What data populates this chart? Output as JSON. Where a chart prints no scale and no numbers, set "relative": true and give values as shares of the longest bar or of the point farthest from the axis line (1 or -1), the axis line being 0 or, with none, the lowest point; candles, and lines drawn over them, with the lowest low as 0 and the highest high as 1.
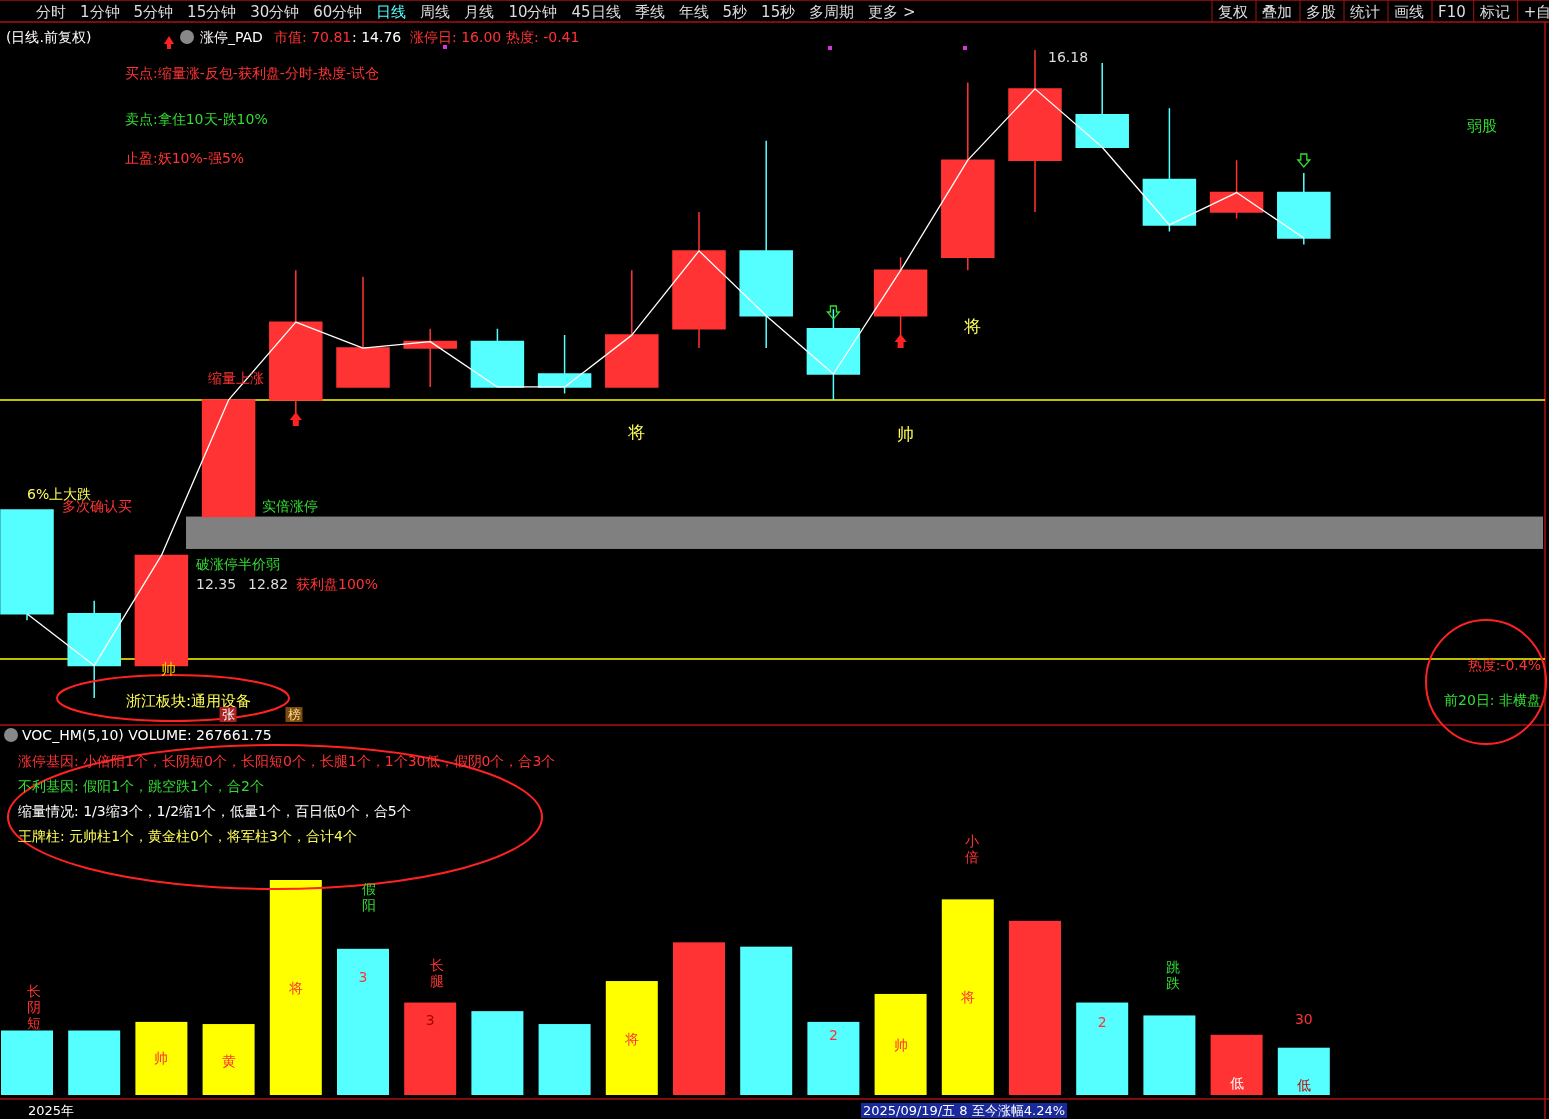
{
  "chart_data": [
    {
      "type": "other",
      "annotations": [
        "分时",
        "1分钟",
        "5分钟",
        "15分钟",
        "30分钟",
        "60分钟",
        "日线",
        "周线",
        "月线",
        "10分钟",
        "45日线",
        "季线",
        "年线",
        "5秒",
        "15秒",
        "多周期",
        "更多 >",
        "复权",
        "叠加",
        "多股",
        "统计",
        "画线",
        "F10",
        "标记",
        "+自"
      ]
    },
    {
      "type": "candlestick",
      "title": "(日线.前复权)",
      "relative": true,
      "categories": [
        null,
        null,
        null,
        null,
        null,
        null,
        null,
        null,
        null,
        null,
        null,
        null,
        null,
        null,
        null,
        null,
        null,
        null,
        null,
        null
      ],
      "ohlc": [
        [
          0.29,
          0.29,
          0.12,
          0.13
        ],
        [
          0.13,
          0.15,
          0,
          0.05
        ],
        [
          0.05,
          0.22,
          0.05,
          0.22
        ],
        [
          0.28,
          0.46,
          0.28,
          0.46
        ],
        [
          0.46,
          0.66,
          0.44,
          0.58
        ],
        [
          0.48,
          0.65,
          0.48,
          0.54
        ],
        [
          0.54,
          0.57,
          0.48,
          0.55
        ],
        [
          0.55,
          0.57,
          0.48,
          0.48
        ],
        [
          0.5,
          0.56,
          0.47,
          0.48
        ],
        [
          0.48,
          0.66,
          0.48,
          0.56
        ],
        [
          0.57,
          0.75,
          0.54,
          0.69
        ],
        [
          0.69,
          0.86,
          0.54,
          0.59
        ],
        [
          0.57,
          0.6,
          0.46,
          0.5
        ],
        [
          0.59,
          0.68,
          0.56,
          0.66
        ],
        [
          0.68,
          0.95,
          0.66,
          0.83
        ],
        [
          0.83,
          1,
          0.75,
          0.94
        ],
        [
          0.9,
          0.98,
          0.85,
          0.85
        ],
        [
          0.8,
          0.91,
          0.72,
          0.73
        ],
        [
          0.75,
          0.83,
          0.74,
          0.78
        ],
        [
          0.78,
          0.81,
          0.7,
          0.71
        ]
      ],
      "colors": [
        "#55ffff",
        "#55ffff",
        "#ff3333",
        "#ff3333",
        "#ff3333",
        "#ff3333",
        "#ff3333",
        "#55ffff",
        "#55ffff",
        "#ff3333",
        "#ff3333",
        "#55ffff",
        "#55ffff",
        "#ff3333",
        "#ff3333",
        "#ff3333",
        "#55ffff",
        "#55ffff",
        "#ff3333",
        "#55ffff"
      ],
      "series": [
        {
          "type": "line",
          "color": "#ffffff",
          "values": [
            0.13,
            0.05,
            0.22,
            0.46,
            0.58,
            0.54,
            0.55,
            0.48,
            0.48,
            0.56,
            0.69,
            0.59,
            0.5,
            0.66,
            0.83,
            0.94,
            0.85,
            0.73,
            0.78,
            0.71
          ]
        }
      ],
      "ref_lines": [
        {
          "axis": "y",
          "value": 0.46,
          "color": "#ffff00"
        },
        {
          "axis": "y",
          "value": 0.06,
          "color": "#ffff00"
        }
      ],
      "bands": [
        {
          "axis": "y",
          "from": 0.23,
          "to": 0.28,
          "color": "#808080"
        }
      ],
      "annotations": [
        "涨停_PAD",
        "市值: 70.81",
        ": 14.76",
        "涨停日: 16.00",
        "热度: -0.41",
        "买点:缩量涨-反包-获利盘-分时-热度-试仓",
        "卖点:拿住10天-跌10%",
        "止盈:妖10%-强5%",
        "16.18",
        "弱股",
        "6%上大跌",
        "缩量上涨",
        "多次确认买",
        "破涨停半价弱",
        "实倍涨停",
        "12.35",
        "12.82",
        "获利盘100%",
        "帅",
        "浙江板块:通用设备",
        "张",
        "榜",
        "将",
        "帅",
        "将",
        "热度:-0.4%",
        "前20日: 非横盘"
      ]
    },
    {
      "type": "bar",
      "title": "VOC_HM(5,10) VOLUME: 267661.75",
      "relative": true,
      "categories": [
        null,
        null,
        null,
        null,
        null,
        null,
        null,
        null,
        null,
        null,
        null,
        null,
        null,
        null,
        null,
        null,
        null,
        null,
        null,
        null
      ],
      "values": [
        0.3,
        0.3,
        0.34,
        0.33,
        1,
        0.68,
        0.43,
        0.39,
        0.33,
        0.53,
        0.71,
        0.69,
        0.34,
        0.47,
        0.91,
        0.81,
        0.43,
        0.37,
        0.28,
        0.22
      ],
      "colors": [
        "#55ffff",
        "#55ffff",
        "#ffff00",
        "#ffff00",
        "#ffff00",
        "#55ffff",
        "#ff3333",
        "#55ffff",
        "#55ffff",
        "#ffff00",
        "#ff3333",
        "#55ffff",
        "#55ffff",
        "#ffff00",
        "#ffff00",
        "#ff3333",
        "#55ffff",
        "#55ffff",
        "#ff3333",
        "#55ffff"
      ],
      "annotations": [
        "涨停基因: 小倍阳1个，长阴短0个，长阳短0个，长腿1个，1个30低，假阴0个，合3个",
        "不利基因: 假阳1个，跳空跌1个，合2个",
        "缩量情况: 1/3缩3个，1/2缩1个，低量1个，百日低0个，合5个",
        "王牌柱: 元帅柱1个，黄金柱0个，将军柱3个，合计4个",
        "长阴短",
        "帅",
        "黄",
        "将",
        "假阳",
        "3",
        "长腿",
        "3",
        "将",
        "2",
        "帅",
        "小倍",
        "将",
        "2",
        "跳跌",
        "低",
        "30",
        "低",
        "2025年",
        "2025/09/19/五 8 至今涨幅4.24%"
      ]
    }
  ]
}
